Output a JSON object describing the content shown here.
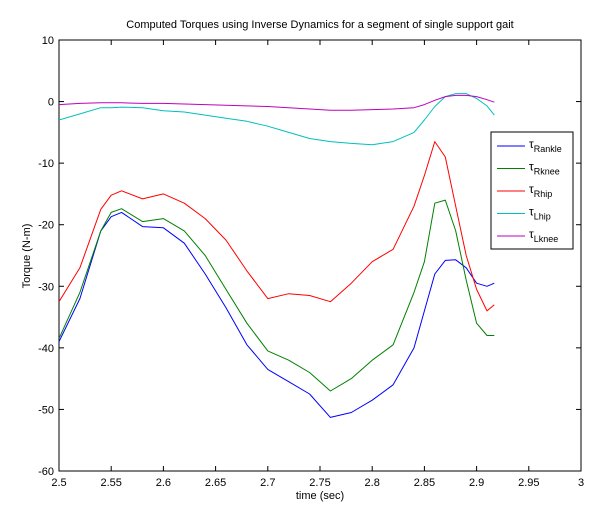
{
  "chart_data": {
    "type": "line",
    "title": "Computed Torques using Inverse Dynamics for a segment of single support gait",
    "xlabel": "time (sec)",
    "ylabel": "Torque (N-m)",
    "xlim": [
      2.5,
      3.0
    ],
    "ylim": [
      -60,
      10
    ],
    "xticks": [
      "2.5",
      "2.55",
      "2.6",
      "2.65",
      "2.7",
      "2.75",
      "2.8",
      "2.85",
      "2.9",
      "2.95",
      "3"
    ],
    "yticks": [
      "10",
      "0",
      "-10",
      "-20",
      "-30",
      "-40",
      "-50",
      "-60"
    ],
    "grid": false,
    "legend_position": "right",
    "x": [
      2.5,
      2.52,
      2.54,
      2.55,
      2.56,
      2.58,
      2.6,
      2.62,
      2.64,
      2.66,
      2.68,
      2.7,
      2.72,
      2.74,
      2.76,
      2.78,
      2.8,
      2.82,
      2.84,
      2.85,
      2.86,
      2.87,
      2.88,
      2.89,
      2.9,
      2.91,
      2.917
    ],
    "series": [
      {
        "label_main": "τ",
        "label_sub": "Rankle",
        "color": "#0000ff",
        "values": [
          -39,
          -32,
          -21,
          -18.7,
          -18,
          -20.3,
          -20.5,
          -23,
          -28,
          -33.5,
          -39.5,
          -43.5,
          -45.5,
          -47.5,
          -51.3,
          -50.5,
          -48.5,
          -46,
          -40,
          -34,
          -28,
          -25.8,
          -25.7,
          -27,
          -29.5,
          -30,
          -29.5
        ]
      },
      {
        "label_main": "τ",
        "label_sub": "Rknee",
        "color": "#008000",
        "values": [
          -38.5,
          -31,
          -21,
          -18,
          -17.4,
          -19.5,
          -19,
          -21,
          -25,
          -30.5,
          -36,
          -40.5,
          -42,
          -44,
          -47,
          -45,
          -42,
          -39.5,
          -31,
          -26,
          -16.5,
          -16,
          -21,
          -29,
          -36,
          -38,
          -38
        ]
      },
      {
        "label_main": "τ",
        "label_sub": "Rhip",
        "color": "#ff0000",
        "values": [
          -32.5,
          -27,
          -17.5,
          -15.2,
          -14.5,
          -15.8,
          -15,
          -16.5,
          -19,
          -22.5,
          -27.5,
          -32,
          -31.2,
          -31.5,
          -32.5,
          -29.5,
          -26,
          -24,
          -17,
          -12,
          -6.5,
          -9,
          -17,
          -25,
          -30.5,
          -34,
          -33
        ]
      },
      {
        "label_main": "τ",
        "label_sub": "Lhip",
        "color": "#00bfbf",
        "values": [
          -3,
          -2,
          -1,
          -1,
          -0.9,
          -1,
          -1.5,
          -1.7,
          -2.2,
          -2.7,
          -3.2,
          -4,
          -5,
          -6,
          -6.5,
          -6.8,
          -7,
          -6.5,
          -5,
          -3,
          -0.8,
          0.8,
          1.3,
          1.3,
          0.5,
          -0.7,
          -2.2
        ]
      },
      {
        "label_main": "τ",
        "label_sub": "Lknee",
        "color": "#bf00bf",
        "values": [
          -0.5,
          -0.3,
          -0.2,
          -0.2,
          -0.2,
          -0.3,
          -0.3,
          -0.4,
          -0.5,
          -0.6,
          -0.7,
          -0.8,
          -1,
          -1.2,
          -1.4,
          -1.4,
          -1.3,
          -1.2,
          -1,
          -0.5,
          0.2,
          0.8,
          1,
          1,
          0.8,
          0.3,
          -0.1
        ]
      }
    ]
  }
}
